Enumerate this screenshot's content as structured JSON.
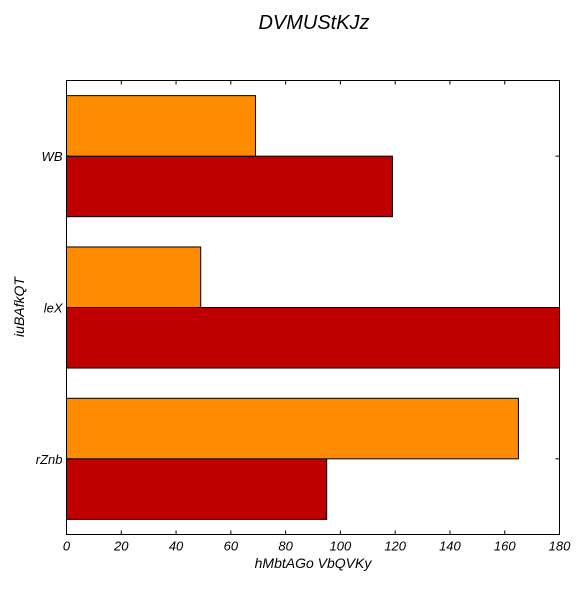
{
  "chart_data": {
    "type": "bar",
    "orientation": "horizontal",
    "title": "DVMUStKJz",
    "xlabel": "hMbtAGo VbQVKy",
    "ylabel": "iuBAfkQT",
    "categories": [
      "rZnb",
      "leX",
      "WB"
    ],
    "series": [
      {
        "color": "#c00000",
        "values": [
          95,
          180,
          119
        ]
      },
      {
        "color": "#ff8c00",
        "values": [
          165,
          49,
          69
        ]
      }
    ],
    "xlim": [
      0,
      180
    ],
    "xticks": [
      0,
      20,
      40,
      60,
      80,
      100,
      120,
      140,
      160,
      180
    ],
    "grid": false,
    "legend": "none"
  }
}
